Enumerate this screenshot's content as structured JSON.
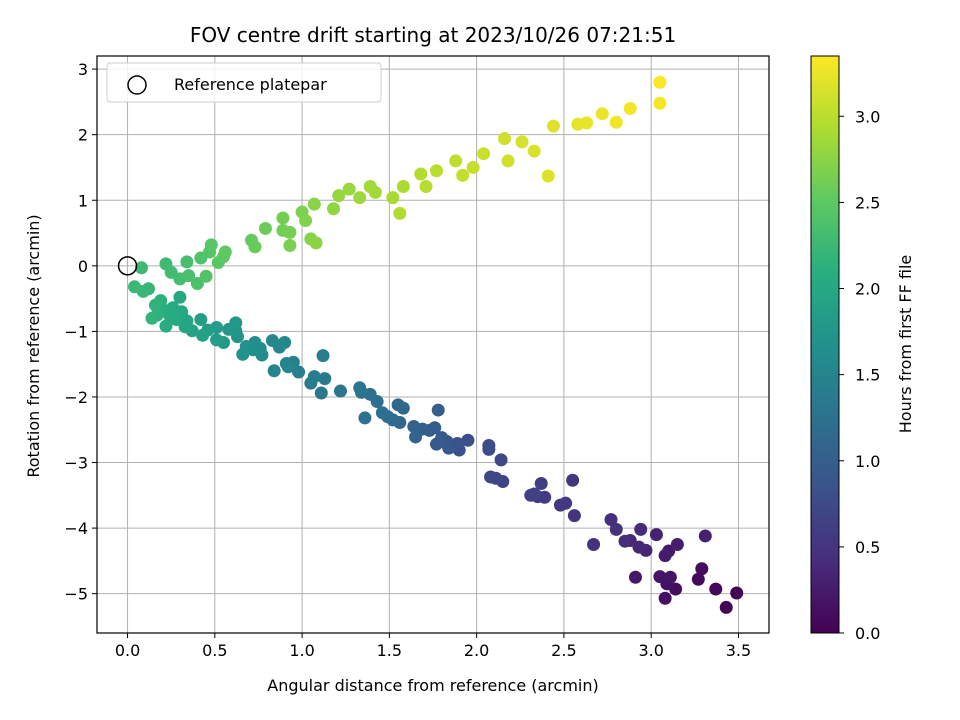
{
  "chart_data": {
    "type": "scatter",
    "title": "FOV centre drift starting at 2023/10/26 07:21:51",
    "xlabel": "Angular distance from reference (arcmin)",
    "ylabel": "Rotation from reference (arcmin)",
    "xlim": [
      -0.175,
      3.675
    ],
    "ylim": [
      -5.6,
      3.2
    ],
    "x_ticks": [
      0.0,
      0.5,
      1.0,
      1.5,
      2.0,
      2.5,
      3.0,
      3.5
    ],
    "x_tick_labels": [
      "0.0",
      "0.5",
      "1.0",
      "1.5",
      "2.0",
      "2.5",
      "3.0",
      "3.5"
    ],
    "y_ticks": [
      -5,
      -4,
      -3,
      -2,
      -1,
      0,
      1,
      2,
      3
    ],
    "y_tick_labels": [
      "−5",
      "−4",
      "−3",
      "−2",
      "−1",
      "0",
      "1",
      "2",
      "3"
    ],
    "grid": true,
    "legend": {
      "placement": "top-left",
      "entries": [
        {
          "label": "Reference platepar",
          "marker": "open-circle",
          "color": "#000000"
        }
      ]
    },
    "reference_point": {
      "x": 0.0,
      "y": 0.0
    },
    "colorbar": {
      "label": "Hours from first FF file",
      "colormap": "viridis",
      "range": [
        0.0,
        3.35
      ],
      "ticks": [
        0.0,
        0.5,
        1.0,
        1.5,
        2.0,
        2.5,
        3.0
      ],
      "tick_labels": [
        "0.0",
        "0.5",
        "1.0",
        "1.5",
        "2.0",
        "2.5",
        "3.0"
      ]
    },
    "points": [
      {
        "x": 3.43,
        "y": -5.21,
        "c": 0.02
      },
      {
        "x": 3.49,
        "y": -4.99,
        "c": 0.04
      },
      {
        "x": 3.37,
        "y": -4.93,
        "c": 0.06
      },
      {
        "x": 3.27,
        "y": -4.78,
        "c": 0.08
      },
      {
        "x": 3.29,
        "y": -4.62,
        "c": 0.1
      },
      {
        "x": 3.14,
        "y": -4.93,
        "c": 0.12
      },
      {
        "x": 3.08,
        "y": -5.07,
        "c": 0.14
      },
      {
        "x": 3.09,
        "y": -4.85,
        "c": 0.16
      },
      {
        "x": 3.05,
        "y": -4.74,
        "c": 0.18
      },
      {
        "x": 3.11,
        "y": -4.75,
        "c": 0.2
      },
      {
        "x": 2.91,
        "y": -4.75,
        "c": 0.22
      },
      {
        "x": 3.1,
        "y": -4.35,
        "c": 0.24
      },
      {
        "x": 3.08,
        "y": -4.42,
        "c": 0.26
      },
      {
        "x": 3.15,
        "y": -4.25,
        "c": 0.28
      },
      {
        "x": 3.31,
        "y": -4.12,
        "c": 0.3
      },
      {
        "x": 3.03,
        "y": -4.1,
        "c": 0.32
      },
      {
        "x": 2.97,
        "y": -4.34,
        "c": 0.34
      },
      {
        "x": 2.93,
        "y": -4.29,
        "c": 0.36
      },
      {
        "x": 2.88,
        "y": -4.19,
        "c": 0.38
      },
      {
        "x": 2.94,
        "y": -4.02,
        "c": 0.4
      },
      {
        "x": 2.85,
        "y": -4.2,
        "c": 0.42
      },
      {
        "x": 2.77,
        "y": -3.87,
        "c": 0.44
      },
      {
        "x": 2.8,
        "y": -4.02,
        "c": 0.46
      },
      {
        "x": 2.67,
        "y": -4.25,
        "c": 0.48
      },
      {
        "x": 2.56,
        "y": -3.81,
        "c": 0.5
      },
      {
        "x": 2.55,
        "y": -3.27,
        "c": 0.52
      },
      {
        "x": 2.51,
        "y": -3.62,
        "c": 0.54
      },
      {
        "x": 2.48,
        "y": -3.65,
        "c": 0.56
      },
      {
        "x": 2.39,
        "y": -3.53,
        "c": 0.58
      },
      {
        "x": 2.35,
        "y": -3.52,
        "c": 0.6
      },
      {
        "x": 2.37,
        "y": -3.32,
        "c": 0.62
      },
      {
        "x": 2.31,
        "y": -3.5,
        "c": 0.64
      },
      {
        "x": 2.33,
        "y": -3.48,
        "c": 0.66
      },
      {
        "x": 2.15,
        "y": -3.29,
        "c": 0.68
      },
      {
        "x": 2.08,
        "y": -3.22,
        "c": 0.7
      },
      {
        "x": 2.11,
        "y": -3.24,
        "c": 0.72
      },
      {
        "x": 2.14,
        "y": -2.96,
        "c": 0.74
      },
      {
        "x": 2.07,
        "y": -2.8,
        "c": 0.76
      },
      {
        "x": 2.07,
        "y": -2.74,
        "c": 0.78
      },
      {
        "x": 1.95,
        "y": -2.66,
        "c": 0.8
      },
      {
        "x": 1.9,
        "y": -2.81,
        "c": 0.82
      },
      {
        "x": 1.89,
        "y": -2.71,
        "c": 0.84
      },
      {
        "x": 1.86,
        "y": -2.74,
        "c": 0.86
      },
      {
        "x": 1.83,
        "y": -2.68,
        "c": 0.88
      },
      {
        "x": 1.84,
        "y": -2.78,
        "c": 0.9
      },
      {
        "x": 1.8,
        "y": -2.62,
        "c": 0.92
      },
      {
        "x": 1.79,
        "y": -2.68,
        "c": 0.94
      },
      {
        "x": 1.77,
        "y": -2.72,
        "c": 0.96
      },
      {
        "x": 1.76,
        "y": -2.47,
        "c": 0.98
      },
      {
        "x": 1.73,
        "y": -2.51,
        "c": 1.0
      },
      {
        "x": 1.78,
        "y": -2.2,
        "c": 1.02
      },
      {
        "x": 1.69,
        "y": -2.49,
        "c": 1.04
      },
      {
        "x": 1.64,
        "y": -2.45,
        "c": 1.06
      },
      {
        "x": 1.65,
        "y": -2.61,
        "c": 1.08
      },
      {
        "x": 1.56,
        "y": -2.39,
        "c": 1.1
      },
      {
        "x": 1.58,
        "y": -2.17,
        "c": 1.12
      },
      {
        "x": 1.55,
        "y": -2.12,
        "c": 1.14
      },
      {
        "x": 1.52,
        "y": -2.35,
        "c": 1.16
      },
      {
        "x": 1.49,
        "y": -2.3,
        "c": 1.18
      },
      {
        "x": 1.46,
        "y": -2.24,
        "c": 1.2
      },
      {
        "x": 1.43,
        "y": -2.07,
        "c": 1.22
      },
      {
        "x": 1.39,
        "y": -1.96,
        "c": 1.24
      },
      {
        "x": 1.36,
        "y": -2.32,
        "c": 1.26
      },
      {
        "x": 1.34,
        "y": -1.93,
        "c": 1.28
      },
      {
        "x": 1.33,
        "y": -1.86,
        "c": 1.3
      },
      {
        "x": 1.22,
        "y": -1.91,
        "c": 1.32
      },
      {
        "x": 1.11,
        "y": -1.94,
        "c": 1.34
      },
      {
        "x": 1.13,
        "y": -1.72,
        "c": 1.36
      },
      {
        "x": 1.05,
        "y": -1.79,
        "c": 1.38
      },
      {
        "x": 1.07,
        "y": -1.69,
        "c": 1.4
      },
      {
        "x": 1.12,
        "y": -1.37,
        "c": 1.42
      },
      {
        "x": 0.98,
        "y": -1.62,
        "c": 1.44
      },
      {
        "x": 0.95,
        "y": -1.47,
        "c": 1.46
      },
      {
        "x": 0.91,
        "y": -1.49,
        "c": 1.48
      },
      {
        "x": 0.84,
        "y": -1.6,
        "c": 1.5
      },
      {
        "x": 0.92,
        "y": -1.54,
        "c": 1.52
      },
      {
        "x": 0.87,
        "y": -1.24,
        "c": 1.54
      },
      {
        "x": 0.83,
        "y": -1.14,
        "c": 1.56
      },
      {
        "x": 0.9,
        "y": -1.17,
        "c": 1.58
      },
      {
        "x": 0.77,
        "y": -1.36,
        "c": 1.6
      },
      {
        "x": 0.76,
        "y": -1.26,
        "c": 1.62
      },
      {
        "x": 0.73,
        "y": -1.17,
        "c": 1.64
      },
      {
        "x": 0.72,
        "y": -1.28,
        "c": 1.66
      },
      {
        "x": 0.68,
        "y": -1.23,
        "c": 1.68
      },
      {
        "x": 0.66,
        "y": -1.35,
        "c": 1.7
      },
      {
        "x": 0.63,
        "y": -1.08,
        "c": 1.72
      },
      {
        "x": 0.62,
        "y": -0.99,
        "c": 1.74
      },
      {
        "x": 0.62,
        "y": -0.87,
        "c": 1.76
      },
      {
        "x": 0.58,
        "y": -0.97,
        "c": 1.78
      },
      {
        "x": 0.55,
        "y": -1.17,
        "c": 1.8
      },
      {
        "x": 0.51,
        "y": -0.94,
        "c": 1.82
      },
      {
        "x": 0.51,
        "y": -1.13,
        "c": 1.84
      },
      {
        "x": 0.46,
        "y": -0.98,
        "c": 1.86
      },
      {
        "x": 0.42,
        "y": -0.82,
        "c": 1.88
      },
      {
        "x": 0.43,
        "y": -1.06,
        "c": 1.9
      },
      {
        "x": 0.37,
        "y": -0.99,
        "c": 1.92
      },
      {
        "x": 0.34,
        "y": -0.84,
        "c": 1.94
      },
      {
        "x": 0.33,
        "y": -0.93,
        "c": 1.96
      },
      {
        "x": 0.31,
        "y": -0.7,
        "c": 1.98
      },
      {
        "x": 0.3,
        "y": -0.48,
        "c": 2.0
      },
      {
        "x": 0.28,
        "y": -0.82,
        "c": 2.02
      },
      {
        "x": 0.26,
        "y": -0.64,
        "c": 2.04
      },
      {
        "x": 0.24,
        "y": -0.75,
        "c": 2.06
      },
      {
        "x": 0.22,
        "y": -0.92,
        "c": 2.08
      },
      {
        "x": 0.2,
        "y": -0.66,
        "c": 2.1
      },
      {
        "x": 0.19,
        "y": -0.53,
        "c": 2.12
      },
      {
        "x": 0.17,
        "y": -0.75,
        "c": 2.14
      },
      {
        "x": 0.16,
        "y": -0.6,
        "c": 2.16
      },
      {
        "x": 0.14,
        "y": -0.8,
        "c": 2.18
      },
      {
        "x": 0.12,
        "y": -0.35,
        "c": 2.2
      },
      {
        "x": 0.09,
        "y": -0.39,
        "c": 2.22
      },
      {
        "x": 0.04,
        "y": -0.32,
        "c": 2.24
      },
      {
        "x": 0.08,
        "y": -0.03,
        "c": 2.26
      },
      {
        "x": 0.22,
        "y": 0.03,
        "c": 2.28
      },
      {
        "x": 0.25,
        "y": -0.1,
        "c": 2.3
      },
      {
        "x": 0.3,
        "y": -0.2,
        "c": 2.32
      },
      {
        "x": 0.34,
        "y": 0.06,
        "c": 2.34
      },
      {
        "x": 0.35,
        "y": -0.15,
        "c": 2.36
      },
      {
        "x": 0.4,
        "y": -0.27,
        "c": 2.38
      },
      {
        "x": 0.42,
        "y": 0.12,
        "c": 2.4
      },
      {
        "x": 0.45,
        "y": -0.16,
        "c": 2.42
      },
      {
        "x": 0.47,
        "y": 0.21,
        "c": 2.44
      },
      {
        "x": 0.48,
        "y": 0.32,
        "c": 2.46
      },
      {
        "x": 0.52,
        "y": 0.05,
        "c": 2.48
      },
      {
        "x": 0.55,
        "y": 0.14,
        "c": 2.5
      },
      {
        "x": 0.56,
        "y": 0.21,
        "c": 2.52
      },
      {
        "x": 0.71,
        "y": 0.39,
        "c": 2.54
      },
      {
        "x": 0.73,
        "y": 0.29,
        "c": 2.56
      },
      {
        "x": 0.79,
        "y": 0.57,
        "c": 2.58
      },
      {
        "x": 0.89,
        "y": 0.54,
        "c": 2.6
      },
      {
        "x": 0.89,
        "y": 0.73,
        "c": 2.62
      },
      {
        "x": 0.93,
        "y": 0.51,
        "c": 2.64
      },
      {
        "x": 0.93,
        "y": 0.31,
        "c": 2.66
      },
      {
        "x": 1.0,
        "y": 0.82,
        "c": 2.68
      },
      {
        "x": 1.02,
        "y": 0.69,
        "c": 2.7
      },
      {
        "x": 1.05,
        "y": 0.41,
        "c": 2.72
      },
      {
        "x": 1.07,
        "y": 0.94,
        "c": 2.74
      },
      {
        "x": 1.08,
        "y": 0.35,
        "c": 2.76
      },
      {
        "x": 1.18,
        "y": 0.87,
        "c": 2.78
      },
      {
        "x": 1.21,
        "y": 1.07,
        "c": 2.8
      },
      {
        "x": 1.27,
        "y": 1.17,
        "c": 2.82
      },
      {
        "x": 1.33,
        "y": 1.04,
        "c": 2.84
      },
      {
        "x": 1.39,
        "y": 1.21,
        "c": 2.86
      },
      {
        "x": 1.42,
        "y": 1.12,
        "c": 2.88
      },
      {
        "x": 1.52,
        "y": 1.04,
        "c": 2.9
      },
      {
        "x": 1.58,
        "y": 1.21,
        "c": 2.92
      },
      {
        "x": 1.56,
        "y": 0.8,
        "c": 2.94
      },
      {
        "x": 1.68,
        "y": 1.4,
        "c": 2.96
      },
      {
        "x": 1.71,
        "y": 1.21,
        "c": 2.98
      },
      {
        "x": 1.77,
        "y": 1.45,
        "c": 3.0
      },
      {
        "x": 1.88,
        "y": 1.6,
        "c": 3.02
      },
      {
        "x": 1.92,
        "y": 1.38,
        "c": 3.04
      },
      {
        "x": 1.98,
        "y": 1.5,
        "c": 3.06
      },
      {
        "x": 2.04,
        "y": 1.71,
        "c": 3.08
      },
      {
        "x": 2.16,
        "y": 1.94,
        "c": 3.1
      },
      {
        "x": 2.18,
        "y": 1.6,
        "c": 3.12
      },
      {
        "x": 2.26,
        "y": 1.89,
        "c": 3.14
      },
      {
        "x": 2.33,
        "y": 1.75,
        "c": 3.16
      },
      {
        "x": 2.41,
        "y": 1.37,
        "c": 3.18
      },
      {
        "x": 2.44,
        "y": 2.13,
        "c": 3.2
      },
      {
        "x": 2.58,
        "y": 2.16,
        "c": 3.22
      },
      {
        "x": 2.63,
        "y": 2.18,
        "c": 3.24
      },
      {
        "x": 2.72,
        "y": 2.32,
        "c": 3.26
      },
      {
        "x": 2.8,
        "y": 2.19,
        "c": 3.28
      },
      {
        "x": 2.88,
        "y": 2.4,
        "c": 3.3
      },
      {
        "x": 3.05,
        "y": 2.48,
        "c": 3.32
      },
      {
        "x": 3.05,
        "y": 2.8,
        "c": 3.34
      }
    ]
  }
}
